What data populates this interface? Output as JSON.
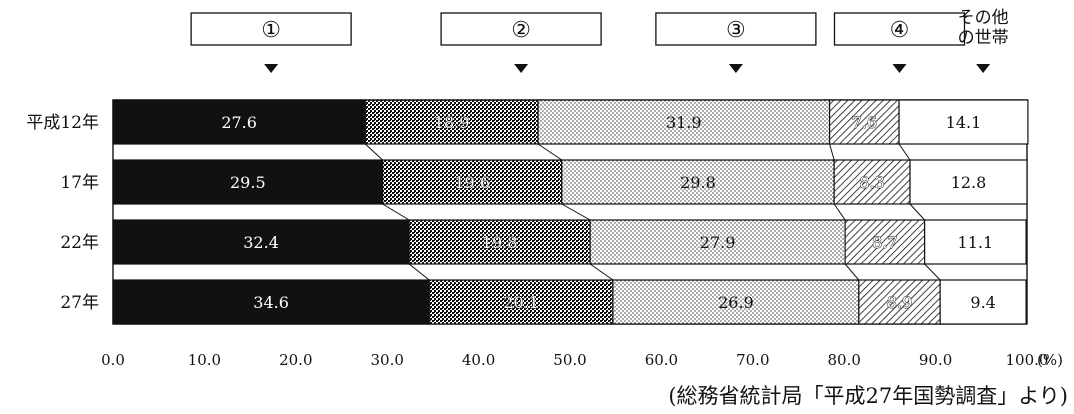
{
  "chart_data": {
    "type": "bar",
    "orientation": "horizontal",
    "stacked": true,
    "normalized": true,
    "categories": [
      "平成12年",
      "17年",
      "22年",
      "27年"
    ],
    "series": [
      {
        "name": "①",
        "values": [
          27.6,
          29.5,
          32.4,
          34.6
        ],
        "pattern": "solid-black"
      },
      {
        "name": "②",
        "values": [
          18.9,
          19.6,
          19.8,
          20.1
        ],
        "pattern": "dense-cross"
      },
      {
        "name": "③",
        "values": [
          31.9,
          29.8,
          27.9,
          26.9
        ],
        "pattern": "fine-dots"
      },
      {
        "name": "④",
        "values": [
          7.6,
          8.3,
          8.7,
          8.9
        ],
        "pattern": "diagonal-hatch"
      },
      {
        "name": "その他\nの世帯",
        "values": [
          14.1,
          12.8,
          11.1,
          9.4
        ],
        "pattern": "white"
      }
    ],
    "x_ticks": [
      "0.0",
      "10.0",
      "20.0",
      "30.0",
      "40.0",
      "50.0",
      "60.0",
      "70.0",
      "80.0",
      "90.0",
      "100.0"
    ],
    "x_unit": "(%)",
    "xlim": [
      0,
      100
    ],
    "source": "(総務省統計局「平成27年国勢調査」より)",
    "colors": {
      "ink": "#111111",
      "background": "#ffffff"
    }
  }
}
